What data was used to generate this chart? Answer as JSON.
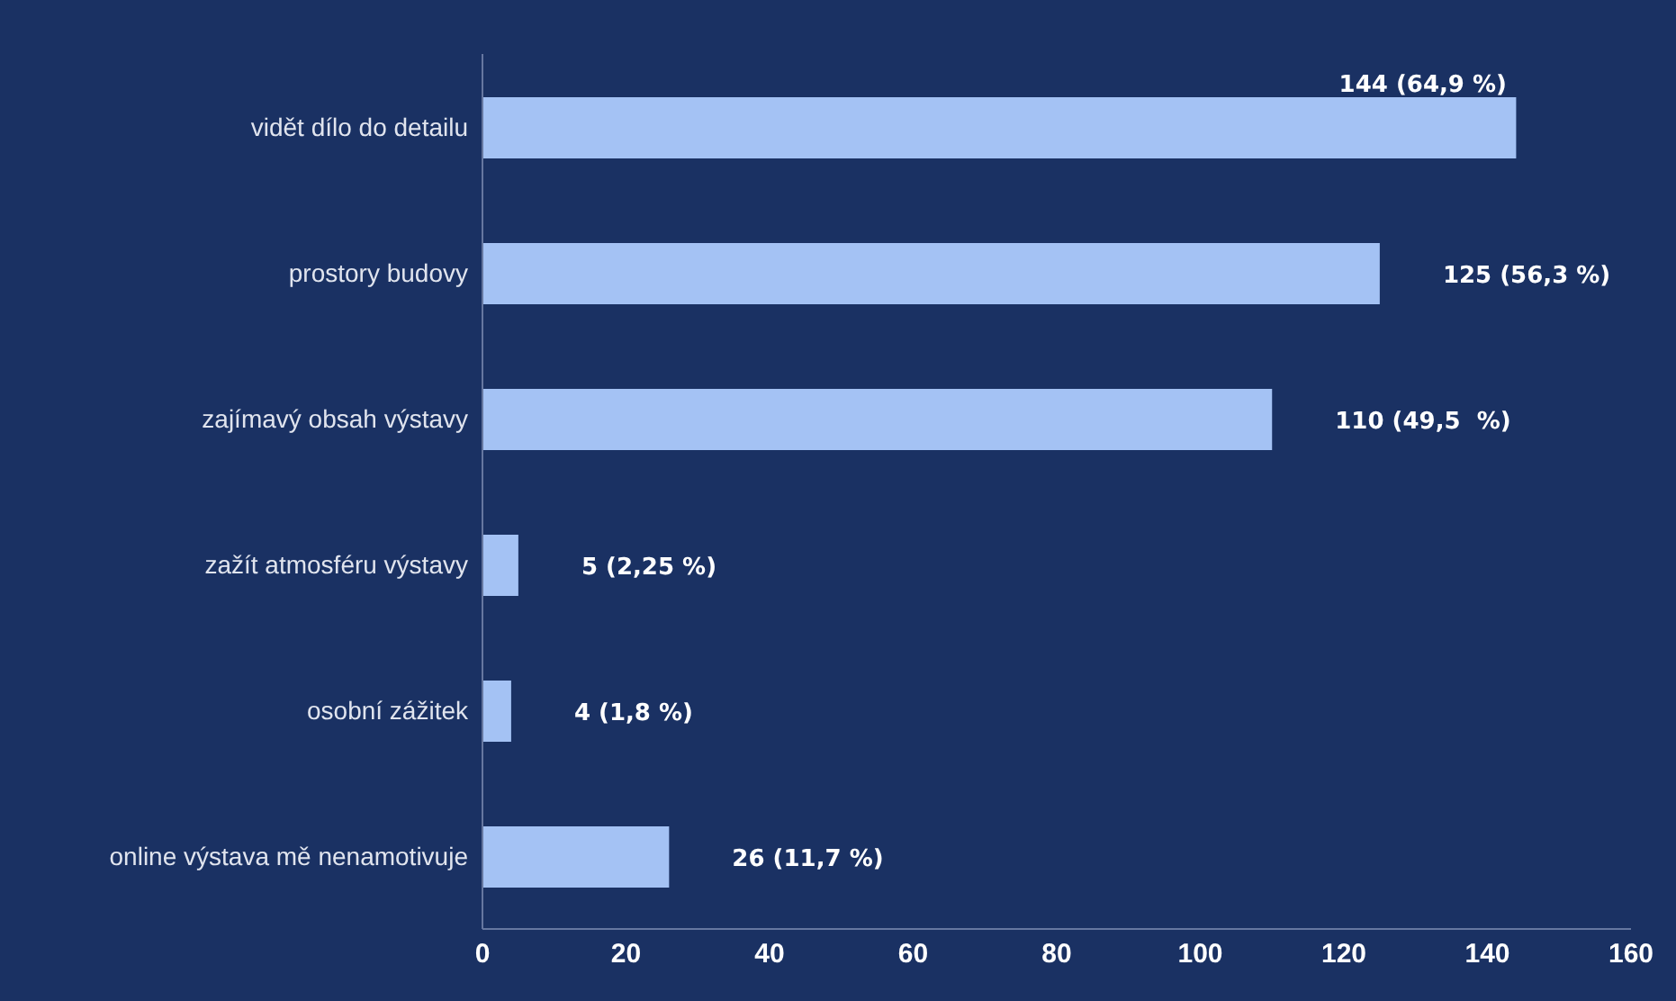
{
  "chart_data": {
    "type": "bar",
    "orientation": "horizontal",
    "categories": [
      "vidět dílo do detailu",
      "prostory budovy",
      "zajímavý obsah výstavy",
      "zažít atmosféru výstavy",
      "osobní zážitek",
      "online výstava mě nenamotivuje"
    ],
    "values": [
      144,
      125,
      110,
      5,
      4,
      26
    ],
    "color": "#a4c2f4",
    "value_labels": [
      "144 (64,9 %)",
      "125 (56,3 %)",
      "110 (49,5  %)",
      "5 (2,25 %)",
      "4 (1,8 %)",
      "26 (11,7 %)"
    ],
    "xlim": [
      0,
      160
    ],
    "xticks": [
      0,
      20,
      40,
      60,
      80,
      100,
      120,
      140,
      160
    ],
    "grid": false
  }
}
